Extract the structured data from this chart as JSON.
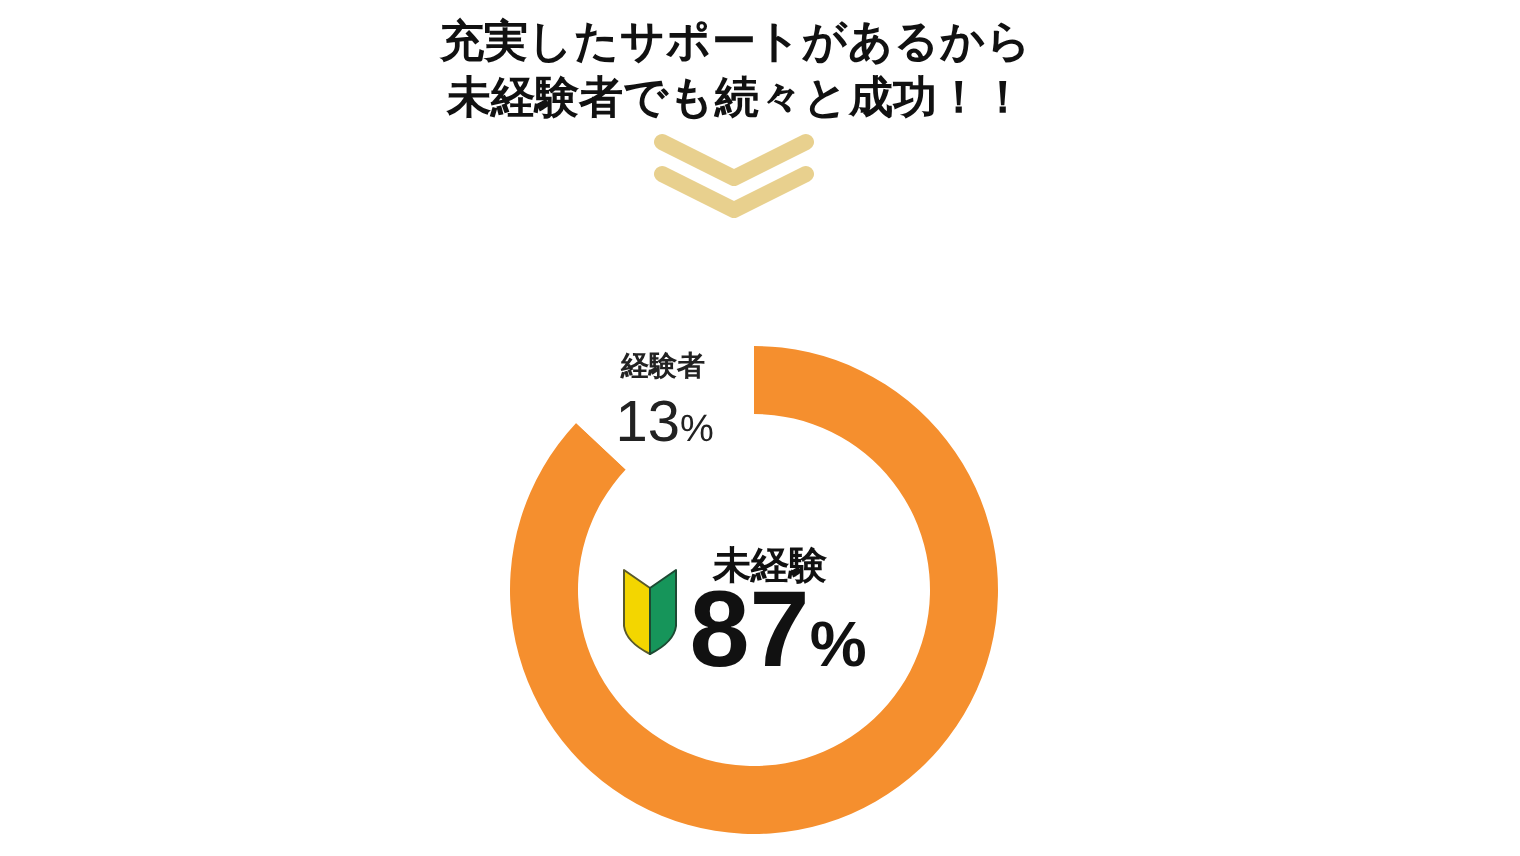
{
  "chart_data": {
    "type": "donut",
    "title": "充実したサポートがあるから未経験者でも続々と成功！！",
    "categories": [
      "未経験",
      "経験者"
    ],
    "values": [
      87,
      13
    ],
    "colors": [
      "#f58f2e",
      "#ffffff"
    ],
    "value_labels": [
      "87%",
      "13%"
    ]
  }
}
